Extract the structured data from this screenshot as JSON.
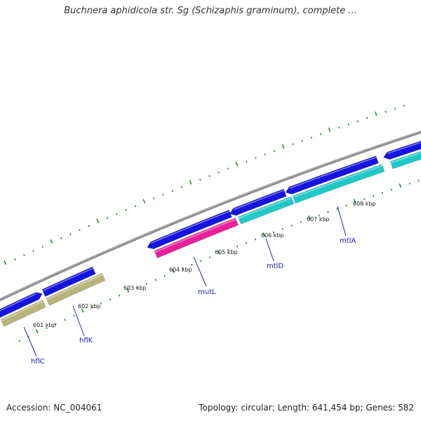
{
  "title": "Buchnera aphidicola str. Sg (Schizaphis graminum), complete ...",
  "footer": {
    "accession": "Accession: NC_004061",
    "topology": "Topology: circular; Length: 641,454 bp; Genes: 582"
  },
  "colors": {
    "backbone": "#8c8c8c",
    "forward_cds": "#1414e0",
    "reverse_cds_olive": "#b8b47a",
    "reverse_cds_magenta": "#e8209a",
    "reverse_cds_cyan": "#20c8c8",
    "tick": "#2a8a2a",
    "leader_line": "#2a2ab0",
    "gene_label": "#1a1aa8"
  },
  "tick_labels": [
    {
      "key": "kbp601",
      "text": "601 kbp"
    },
    {
      "key": "kbp602",
      "text": "602 kbp"
    },
    {
      "key": "kbp603",
      "text": "603 kbp"
    },
    {
      "key": "kbp604",
      "text": "604 kbp"
    },
    {
      "key": "kbp605",
      "text": "605 kbp"
    },
    {
      "key": "kbp606",
      "text": "606 kbp"
    },
    {
      "key": "kbp607",
      "text": "607 kbp"
    },
    {
      "key": "kbp608",
      "text": "608 kbp"
    }
  ],
  "gene_labels": [
    {
      "key": "hflC",
      "text": "hflC"
    },
    {
      "key": "hflK",
      "text": "hflK"
    },
    {
      "key": "mutL",
      "text": "mutL"
    },
    {
      "key": "mtlD",
      "text": "mtlD"
    },
    {
      "key": "mtlA",
      "text": "mtlA"
    }
  ]
}
